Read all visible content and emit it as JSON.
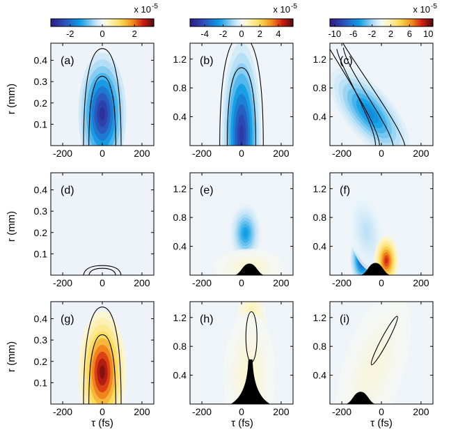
{
  "figure": {
    "colorbars": [
      {
        "column": 0,
        "ticks": [
          "-2",
          "0",
          "2"
        ],
        "tick_values": [
          -2,
          0,
          2
        ],
        "range": [
          -3.2,
          3.2
        ],
        "multiplier": "x 10",
        "exponent": "-5"
      },
      {
        "column": 1,
        "ticks": [
          "-4",
          "-2",
          "0",
          "2",
          "4"
        ],
        "tick_values": [
          -4,
          -2,
          0,
          2,
          4
        ],
        "range": [
          -5.6,
          5.6
        ],
        "multiplier": "x 10",
        "exponent": "-5"
      },
      {
        "column": 2,
        "ticks": [
          "-10",
          "-6",
          "-2",
          "2",
          "6",
          "10"
        ],
        "tick_values": [
          -10,
          -6,
          -2,
          2,
          6,
          10
        ],
        "range": [
          -11,
          11
        ],
        "multiplier": "x 10",
        "exponent": "-5"
      }
    ],
    "ylabel": "r (mm)",
    "xlabel": "τ (fs)"
  },
  "chart_data": {
    "type": "heatmap",
    "x_ticks": [
      -200,
      0,
      200
    ],
    "y_ticks_col0": [
      "0.1",
      "0.2",
      "0.3",
      "0.4"
    ],
    "y_ticks_col0_values": [
      0.1,
      0.2,
      0.3,
      0.4
    ],
    "y_ticks_col12": [
      "0.4",
      "0.8",
      "1.2"
    ],
    "y_ticks_col12_values": [
      0.4,
      0.8,
      1.2
    ],
    "panels": [
      {
        "label": "(a)",
        "row": 0,
        "col": 0,
        "xlim": [
          -260,
          260
        ],
        "ylim": [
          0,
          0.48
        ],
        "blobs": [
          {
            "cx": 0,
            "cy": 0.15,
            "sx": 55,
            "sy": 0.13,
            "amp": -3.0,
            "tilt": 0
          }
        ],
        "contours": [
          {
            "cx": 0,
            "h": 0.455,
            "hw": 95
          },
          {
            "cx": 0,
            "h": 0.325,
            "hw": 68
          }
        ]
      },
      {
        "label": "(b)",
        "row": 0,
        "col": 1,
        "xlim": [
          -260,
          260
        ],
        "ylim": [
          0,
          1.42
        ],
        "blobs": [
          {
            "cx": 0,
            "cy": 0.15,
            "sx": 45,
            "sy": 0.58,
            "amp": -5.0,
            "tilt": 0
          }
        ],
        "contours": [
          {
            "cx": 0,
            "h": 1.52,
            "hw": 110
          },
          {
            "cx": 0,
            "h": 1.08,
            "hw": 72
          }
        ]
      },
      {
        "label": "(c)",
        "row": 0,
        "col": 2,
        "xlim": [
          -260,
          260
        ],
        "ylim": [
          0,
          1.42
        ],
        "blobs": [
          {
            "cx": -60,
            "cy": 0.45,
            "sx": 55,
            "sy": 0.35,
            "amp": -6.0,
            "tilt": -160
          }
        ],
        "tilted_contours": [
          {
            "r_top": 1.6,
            "x_top": -260,
            "x_bottom": 120,
            "w_top": 60,
            "w_bottom": 130
          },
          {
            "r_top": 1.3,
            "x_top": -200,
            "x_bottom": 60,
            "w_top": 25,
            "w_bottom": 90
          }
        ]
      },
      {
        "label": "(d)",
        "row": 1,
        "col": 0,
        "xlim": [
          -260,
          260
        ],
        "ylim": [
          0,
          0.48
        ],
        "blobs": [],
        "contours": [
          {
            "cx": 0,
            "h": 0.045,
            "hw": 95
          },
          {
            "cx": 0,
            "h": 0.032,
            "hw": 68
          }
        ]
      },
      {
        "label": "(e)",
        "row": 1,
        "col": 1,
        "xlim": [
          -260,
          260
        ],
        "ylim": [
          0,
          1.42
        ],
        "blobs": [
          {
            "cx": 20,
            "cy": 0.58,
            "sx": 35,
            "sy": 0.18,
            "amp": -2.6,
            "tilt": 0
          },
          {
            "cx": 40,
            "cy": 0.1,
            "sx": 80,
            "sy": 0.12,
            "amp": 0.6,
            "tilt": 0
          }
        ],
        "black": [
          {
            "cx": 40,
            "hw": 80,
            "h": 0.16,
            "type": "hill"
          }
        ]
      },
      {
        "label": "(f)",
        "row": 1,
        "col": 2,
        "xlim": [
          -260,
          260
        ],
        "ylim": [
          0,
          1.42
        ],
        "blobs": [
          {
            "cx": -95,
            "cy": 0.22,
            "sx": 28,
            "sy": 0.16,
            "amp": -9.0,
            "tilt": 0
          },
          {
            "cx": -75,
            "cy": 0.6,
            "sx": 40,
            "sy": 0.25,
            "amp": -1.6,
            "tilt": -40
          },
          {
            "cx": 25,
            "cy": 0.2,
            "sx": 28,
            "sy": 0.16,
            "amp": 9.0,
            "tilt": 0
          }
        ],
        "black": [
          {
            "cx": -30,
            "hw": 80,
            "h": 0.17,
            "type": "hill"
          }
        ]
      },
      {
        "label": "(g)",
        "row": 2,
        "col": 0,
        "xlim": [
          -260,
          260
        ],
        "ylim": [
          0,
          0.48
        ],
        "blobs": [
          {
            "cx": 0,
            "cy": 0.15,
            "sx": 55,
            "sy": 0.13,
            "amp": 3.1,
            "tilt": 0
          }
        ],
        "contours": [
          {
            "cx": 0,
            "h": 0.455,
            "hw": 95
          },
          {
            "cx": 0,
            "h": 0.325,
            "hw": 68
          }
        ]
      },
      {
        "label": "(h)",
        "row": 2,
        "col": 1,
        "xlim": [
          -260,
          260
        ],
        "ylim": [
          0,
          1.42
        ],
        "blobs": [
          {
            "cx": 50,
            "cy": 0.95,
            "sx": 35,
            "sy": 0.42,
            "amp": 1.4,
            "tilt": 0
          },
          {
            "cx": 40,
            "cy": 0.4,
            "sx": 60,
            "sy": 0.4,
            "amp": 0.6,
            "tilt": 0
          }
        ],
        "black": [
          {
            "cx": 45,
            "hw": 100,
            "h": 0.62,
            "type": "waist"
          }
        ],
        "ellipses": [
          {
            "cx": 50,
            "cy": 0.93,
            "rx": 28,
            "ry": 0.35
          }
        ]
      },
      {
        "label": "(i)",
        "row": 2,
        "col": 2,
        "xlim": [
          -260,
          260
        ],
        "ylim": [
          0,
          1.42
        ],
        "blobs": [
          {
            "cx": 10,
            "cy": 0.9,
            "sx": 40,
            "sy": 0.35,
            "amp": 2.2,
            "tilt": 70
          },
          {
            "cx": -40,
            "cy": 0.5,
            "sx": 70,
            "sy": 0.5,
            "amp": 0.8,
            "tilt": 70
          }
        ],
        "black": [
          {
            "cx": -105,
            "hw": 80,
            "h": 0.17,
            "type": "hill"
          }
        ],
        "tilted_ellipses": [
          {
            "cx": 15,
            "cy": 0.88,
            "rx": 38,
            "ry": 0.38,
            "slope": 0.003
          }
        ]
      }
    ]
  }
}
